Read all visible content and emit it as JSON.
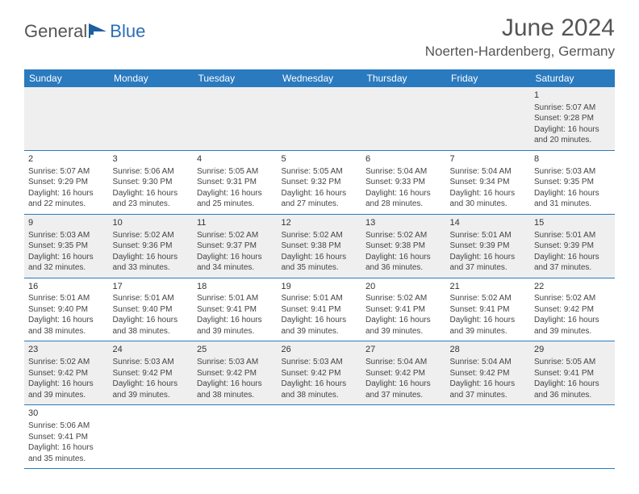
{
  "brand": {
    "name_part1": "General",
    "name_part2": "Blue"
  },
  "header": {
    "title": "June 2024",
    "subtitle": "Noerten-Hardenberg, Germany"
  },
  "calendar": {
    "weekdays": [
      "Sunday",
      "Monday",
      "Tuesday",
      "Wednesday",
      "Thursday",
      "Friday",
      "Saturday"
    ],
    "header_bg": "#2a7abf",
    "header_fg": "#ffffff",
    "alt_row_bg": "#efefef",
    "border_color": "#2a7abf",
    "rows": [
      {
        "alt": true,
        "cells": [
          null,
          null,
          null,
          null,
          null,
          null,
          {
            "day": "1",
            "sunrise": "Sunrise: 5:07 AM",
            "sunset": "Sunset: 9:28 PM",
            "daylight1": "Daylight: 16 hours",
            "daylight2": "and 20 minutes."
          }
        ]
      },
      {
        "alt": false,
        "cells": [
          {
            "day": "2",
            "sunrise": "Sunrise: 5:07 AM",
            "sunset": "Sunset: 9:29 PM",
            "daylight1": "Daylight: 16 hours",
            "daylight2": "and 22 minutes."
          },
          {
            "day": "3",
            "sunrise": "Sunrise: 5:06 AM",
            "sunset": "Sunset: 9:30 PM",
            "daylight1": "Daylight: 16 hours",
            "daylight2": "and 23 minutes."
          },
          {
            "day": "4",
            "sunrise": "Sunrise: 5:05 AM",
            "sunset": "Sunset: 9:31 PM",
            "daylight1": "Daylight: 16 hours",
            "daylight2": "and 25 minutes."
          },
          {
            "day": "5",
            "sunrise": "Sunrise: 5:05 AM",
            "sunset": "Sunset: 9:32 PM",
            "daylight1": "Daylight: 16 hours",
            "daylight2": "and 27 minutes."
          },
          {
            "day": "6",
            "sunrise": "Sunrise: 5:04 AM",
            "sunset": "Sunset: 9:33 PM",
            "daylight1": "Daylight: 16 hours",
            "daylight2": "and 28 minutes."
          },
          {
            "day": "7",
            "sunrise": "Sunrise: 5:04 AM",
            "sunset": "Sunset: 9:34 PM",
            "daylight1": "Daylight: 16 hours",
            "daylight2": "and 30 minutes."
          },
          {
            "day": "8",
            "sunrise": "Sunrise: 5:03 AM",
            "sunset": "Sunset: 9:35 PM",
            "daylight1": "Daylight: 16 hours",
            "daylight2": "and 31 minutes."
          }
        ]
      },
      {
        "alt": true,
        "cells": [
          {
            "day": "9",
            "sunrise": "Sunrise: 5:03 AM",
            "sunset": "Sunset: 9:35 PM",
            "daylight1": "Daylight: 16 hours",
            "daylight2": "and 32 minutes."
          },
          {
            "day": "10",
            "sunrise": "Sunrise: 5:02 AM",
            "sunset": "Sunset: 9:36 PM",
            "daylight1": "Daylight: 16 hours",
            "daylight2": "and 33 minutes."
          },
          {
            "day": "11",
            "sunrise": "Sunrise: 5:02 AM",
            "sunset": "Sunset: 9:37 PM",
            "daylight1": "Daylight: 16 hours",
            "daylight2": "and 34 minutes."
          },
          {
            "day": "12",
            "sunrise": "Sunrise: 5:02 AM",
            "sunset": "Sunset: 9:38 PM",
            "daylight1": "Daylight: 16 hours",
            "daylight2": "and 35 minutes."
          },
          {
            "day": "13",
            "sunrise": "Sunrise: 5:02 AM",
            "sunset": "Sunset: 9:38 PM",
            "daylight1": "Daylight: 16 hours",
            "daylight2": "and 36 minutes."
          },
          {
            "day": "14",
            "sunrise": "Sunrise: 5:01 AM",
            "sunset": "Sunset: 9:39 PM",
            "daylight1": "Daylight: 16 hours",
            "daylight2": "and 37 minutes."
          },
          {
            "day": "15",
            "sunrise": "Sunrise: 5:01 AM",
            "sunset": "Sunset: 9:39 PM",
            "daylight1": "Daylight: 16 hours",
            "daylight2": "and 37 minutes."
          }
        ]
      },
      {
        "alt": false,
        "cells": [
          {
            "day": "16",
            "sunrise": "Sunrise: 5:01 AM",
            "sunset": "Sunset: 9:40 PM",
            "daylight1": "Daylight: 16 hours",
            "daylight2": "and 38 minutes."
          },
          {
            "day": "17",
            "sunrise": "Sunrise: 5:01 AM",
            "sunset": "Sunset: 9:40 PM",
            "daylight1": "Daylight: 16 hours",
            "daylight2": "and 38 minutes."
          },
          {
            "day": "18",
            "sunrise": "Sunrise: 5:01 AM",
            "sunset": "Sunset: 9:41 PM",
            "daylight1": "Daylight: 16 hours",
            "daylight2": "and 39 minutes."
          },
          {
            "day": "19",
            "sunrise": "Sunrise: 5:01 AM",
            "sunset": "Sunset: 9:41 PM",
            "daylight1": "Daylight: 16 hours",
            "daylight2": "and 39 minutes."
          },
          {
            "day": "20",
            "sunrise": "Sunrise: 5:02 AM",
            "sunset": "Sunset: 9:41 PM",
            "daylight1": "Daylight: 16 hours",
            "daylight2": "and 39 minutes."
          },
          {
            "day": "21",
            "sunrise": "Sunrise: 5:02 AM",
            "sunset": "Sunset: 9:41 PM",
            "daylight1": "Daylight: 16 hours",
            "daylight2": "and 39 minutes."
          },
          {
            "day": "22",
            "sunrise": "Sunrise: 5:02 AM",
            "sunset": "Sunset: 9:42 PM",
            "daylight1": "Daylight: 16 hours",
            "daylight2": "and 39 minutes."
          }
        ]
      },
      {
        "alt": true,
        "cells": [
          {
            "day": "23",
            "sunrise": "Sunrise: 5:02 AM",
            "sunset": "Sunset: 9:42 PM",
            "daylight1": "Daylight: 16 hours",
            "daylight2": "and 39 minutes."
          },
          {
            "day": "24",
            "sunrise": "Sunrise: 5:03 AM",
            "sunset": "Sunset: 9:42 PM",
            "daylight1": "Daylight: 16 hours",
            "daylight2": "and 39 minutes."
          },
          {
            "day": "25",
            "sunrise": "Sunrise: 5:03 AM",
            "sunset": "Sunset: 9:42 PM",
            "daylight1": "Daylight: 16 hours",
            "daylight2": "and 38 minutes."
          },
          {
            "day": "26",
            "sunrise": "Sunrise: 5:03 AM",
            "sunset": "Sunset: 9:42 PM",
            "daylight1": "Daylight: 16 hours",
            "daylight2": "and 38 minutes."
          },
          {
            "day": "27",
            "sunrise": "Sunrise: 5:04 AM",
            "sunset": "Sunset: 9:42 PM",
            "daylight1": "Daylight: 16 hours",
            "daylight2": "and 37 minutes."
          },
          {
            "day": "28",
            "sunrise": "Sunrise: 5:04 AM",
            "sunset": "Sunset: 9:42 PM",
            "daylight1": "Daylight: 16 hours",
            "daylight2": "and 37 minutes."
          },
          {
            "day": "29",
            "sunrise": "Sunrise: 5:05 AM",
            "sunset": "Sunset: 9:41 PM",
            "daylight1": "Daylight: 16 hours",
            "daylight2": "and 36 minutes."
          }
        ]
      },
      {
        "alt": false,
        "cells": [
          {
            "day": "30",
            "sunrise": "Sunrise: 5:06 AM",
            "sunset": "Sunset: 9:41 PM",
            "daylight1": "Daylight: 16 hours",
            "daylight2": "and 35 minutes."
          },
          null,
          null,
          null,
          null,
          null,
          null
        ]
      }
    ]
  }
}
